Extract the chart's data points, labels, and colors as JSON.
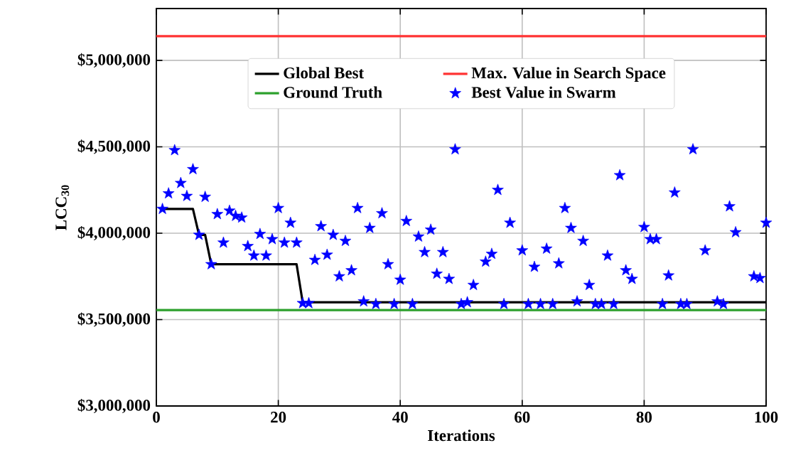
{
  "chart_data": {
    "type": "scatter",
    "xlabel": "Iterations",
    "ylabel": "LCC$_{30}$",
    "xlim": [
      0,
      100
    ],
    "ylim": [
      3000000,
      5300000
    ],
    "xticks": [
      0,
      20,
      40,
      60,
      80,
      100
    ],
    "yticks": [
      {
        "value": 3000000,
        "label": "$3,000,000"
      },
      {
        "value": 3500000,
        "label": "$3,500,000"
      },
      {
        "value": 4000000,
        "label": "$4,000,000"
      },
      {
        "value": 4500000,
        "label": "$4,500,000"
      },
      {
        "value": 5000000,
        "label": "$5,000,000"
      }
    ],
    "grid": true,
    "legend": "top",
    "series": [
      {
        "name": "Global Best",
        "type": "line",
        "color": "#000000",
        "x": [
          1,
          6,
          7,
          8,
          9,
          23,
          24,
          100
        ],
        "values": [
          4140000,
          4140000,
          3990000,
          3990000,
          3820000,
          3820000,
          3600000,
          3600000
        ]
      },
      {
        "name": "Max. Value in Search Space",
        "type": "line",
        "color": "#ff3333",
        "x": [
          0,
          100
        ],
        "values": [
          5140000,
          5140000
        ]
      },
      {
        "name": "Ground Truth",
        "type": "line",
        "color": "#2ca02c",
        "x": [
          0,
          100
        ],
        "values": [
          3555000,
          3555000
        ]
      },
      {
        "name": "Best Value in Swarm",
        "marker": "star",
        "color": "#0000ff",
        "x": [
          1,
          2,
          3,
          4,
          5,
          6,
          7,
          8,
          9,
          10,
          11,
          12,
          13,
          14,
          15,
          16,
          17,
          18,
          19,
          20,
          21,
          22,
          23,
          24,
          25,
          26,
          27,
          28,
          29,
          30,
          31,
          32,
          33,
          34,
          35,
          36,
          37,
          38,
          39,
          40,
          41,
          42,
          43,
          44,
          45,
          46,
          47,
          48,
          49,
          50,
          51,
          52,
          54,
          55,
          56,
          57,
          58,
          60,
          61,
          62,
          63,
          64,
          65,
          66,
          67,
          68,
          69,
          70,
          71,
          72,
          73,
          74,
          75,
          76,
          77,
          78,
          80,
          81,
          82,
          83,
          84,
          85,
          86,
          87,
          88,
          90,
          92,
          93,
          94,
          95,
          98,
          99,
          100
        ],
        "values": [
          4140000,
          4230000,
          4480000,
          4290000,
          4215000,
          4370000,
          3990000,
          4210000,
          3820000,
          4110000,
          3945000,
          4130000,
          4100000,
          4090000,
          3925000,
          3870000,
          3995000,
          3870000,
          3965000,
          4145000,
          3945000,
          4060000,
          3945000,
          3595000,
          3595000,
          3845000,
          4040000,
          3875000,
          3990000,
          3750000,
          3955000,
          3785000,
          4145000,
          3605000,
          4030000,
          3590000,
          4115000,
          3820000,
          3590000,
          3730000,
          4070000,
          3590000,
          3980000,
          3890000,
          4020000,
          3765000,
          3890000,
          3735000,
          4485000,
          3590000,
          3600000,
          3700000,
          3835000,
          3880000,
          4250000,
          3590000,
          4060000,
          3900000,
          3590000,
          3805000,
          3590000,
          3910000,
          3590000,
          3825000,
          4145000,
          4030000,
          3605000,
          3955000,
          3700000,
          3590000,
          3590000,
          3870000,
          3590000,
          4335000,
          3785000,
          3735000,
          4035000,
          3965000,
          3965000,
          3590000,
          3755000,
          4235000,
          3590000,
          3590000,
          4485000,
          3900000,
          3605000,
          3590000,
          4155000,
          4005000,
          3750000,
          3740000,
          4060000
        ]
      }
    ]
  }
}
